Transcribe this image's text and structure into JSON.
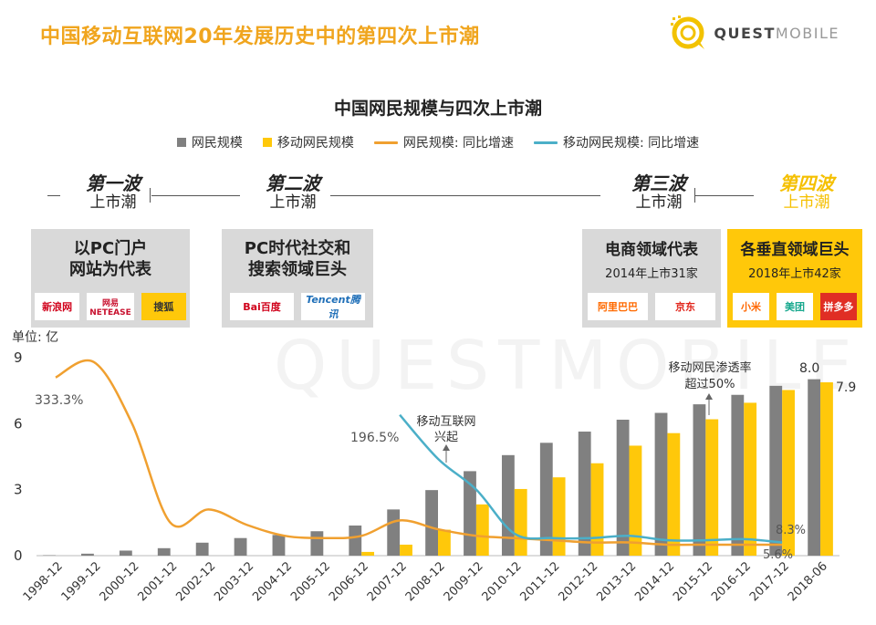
{
  "header": {
    "title": "中国移动互联网20年发展历史中的第四次上市潮",
    "brand_bold": "QUEST",
    "brand_light": "MOBILE"
  },
  "watermark": "QUESTMOBILE",
  "colors": {
    "title": "#f0a51e",
    "internet_bar": "#808080",
    "mobile_bar": "#ffc80a",
    "internet_growth_line": "#f0a030",
    "mobile_growth_line": "#4bafc8",
    "card_bg": "#d9d9d9",
    "card_highlight_bg": "#ffc80a"
  },
  "waves": [
    {
      "name": "第一波",
      "sub": "上市潮"
    },
    {
      "name": "第二波",
      "sub": "上市潮"
    },
    {
      "name": "第三波",
      "sub": "上市潮"
    },
    {
      "name": "第四波",
      "sub": "上市潮"
    }
  ],
  "cards": [
    {
      "title_lines": [
        "以PC门户",
        "网站为代表"
      ],
      "sub": "",
      "logos": [
        "新浪网",
        "网易 NETEASE",
        "搜狐"
      ]
    },
    {
      "title_lines": [
        "PC时代社交和",
        "搜索领域巨头"
      ],
      "sub": "",
      "logos": [
        "Bai百度",
        "Tencent腾讯"
      ]
    },
    {
      "title_lines": [
        "电商领域代表"
      ],
      "sub": "2014年上市31家",
      "logos": [
        "阿里巴巴",
        "京东"
      ]
    },
    {
      "title_lines": [
        "各垂直领域巨头"
      ],
      "sub": "2018年上市42家",
      "logos": [
        "小米",
        "美团",
        "拼多多"
      ]
    }
  ],
  "chart_data": {
    "type": "bar",
    "title": "中国网民规模与四次上市潮",
    "ylabel": "单位: 亿",
    "ylim": [
      0,
      9
    ],
    "yticks": [
      "0",
      "3",
      "6",
      "9"
    ],
    "categories": [
      "1998-12",
      "1999-12",
      "2000-12",
      "2001-12",
      "2002-12",
      "2003-12",
      "2004-12",
      "2005-12",
      "2006-12",
      "2007-12",
      "2008-12",
      "2009-12",
      "2010-12",
      "2011-12",
      "2012-12",
      "2013-12",
      "2014-12",
      "2015-12",
      "2016-12",
      "2017-12",
      "2018-06"
    ],
    "series": [
      {
        "name": "网民规模",
        "kind": "bar",
        "color": "#808080",
        "values": [
          0.02,
          0.09,
          0.23,
          0.34,
          0.59,
          0.8,
          0.94,
          1.11,
          1.37,
          2.1,
          2.98,
          3.84,
          4.57,
          5.13,
          5.64,
          6.18,
          6.49,
          6.88,
          7.31,
          7.72,
          8.02
        ]
      },
      {
        "name": "移动网民规模",
        "kind": "bar",
        "color": "#ffc80a",
        "values": [
          0,
          0,
          0,
          0,
          0,
          0,
          0,
          0,
          0.17,
          0.5,
          1.18,
          2.33,
          3.03,
          3.56,
          4.2,
          5.0,
          5.57,
          6.2,
          6.95,
          7.53,
          7.88
        ]
      },
      {
        "name": "网民规模: 同比增速",
        "kind": "line",
        "color": "#f0a030",
        "points": [
          [
            0,
            8.1
          ],
          [
            1,
            8.8
          ],
          [
            2,
            6.0
          ],
          [
            3,
            1.5
          ],
          [
            4,
            2.1
          ],
          [
            5,
            1.4
          ],
          [
            6,
            0.9
          ],
          [
            7,
            0.8
          ],
          [
            8,
            0.9
          ],
          [
            9,
            1.6
          ],
          [
            10,
            1.2
          ],
          [
            11,
            0.9
          ],
          [
            12,
            0.8
          ],
          [
            13,
            0.7
          ],
          [
            14,
            0.6
          ],
          [
            15,
            0.6
          ],
          [
            16,
            0.5
          ],
          [
            17,
            0.5
          ],
          [
            18,
            0.5
          ],
          [
            19,
            0.5
          ]
        ]
      },
      {
        "name": "移动网民规模: 同比增速",
        "kind": "line",
        "color": "#4bafc8",
        "points": [
          [
            9,
            6.4
          ],
          [
            10,
            4.4
          ],
          [
            11,
            3.0
          ],
          [
            12,
            1.0
          ],
          [
            13,
            0.8
          ],
          [
            14,
            0.8
          ],
          [
            15,
            0.9
          ],
          [
            16,
            0.7
          ],
          [
            17,
            0.7
          ],
          [
            18,
            0.75
          ],
          [
            19,
            0.6
          ]
        ]
      }
    ],
    "data_labels": {
      "internet_growth_peak": "333.3%",
      "mobile_growth_start": "196.5%",
      "internet_growth_end": "5.6%",
      "mobile_growth_end": "8.3%",
      "internet_last": "8.0",
      "mobile_last": "7.9"
    },
    "annotations": {
      "mobile_rise": [
        "移动互联网",
        "兴起"
      ],
      "penetration": [
        "移动网民渗透率",
        "超过50%"
      ]
    }
  }
}
